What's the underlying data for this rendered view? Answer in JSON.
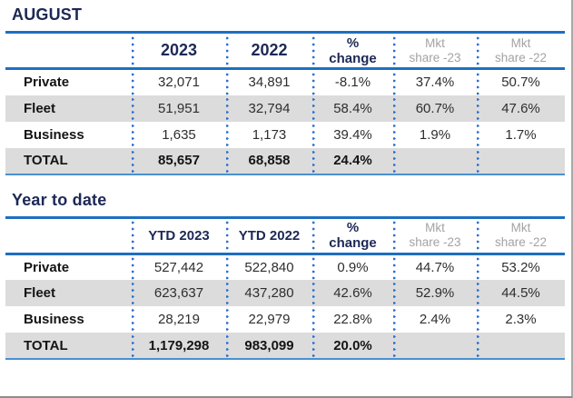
{
  "colors": {
    "accent_blue": "#1e6fc0",
    "light_blue_rule": "#4a90d0",
    "dot_blue": "#2a6fce",
    "navy": "#1c2856",
    "stripe_gray": "#dcdcdc",
    "header_gray": "#a3a3a3"
  },
  "sections": [
    {
      "title": "AUGUST",
      "table": {
        "columns": [
          {
            "line1": "",
            "line2": ""
          },
          {
            "line1": "2023",
            "line2": ""
          },
          {
            "line1": "2022",
            "line2": ""
          },
          {
            "line1": "%",
            "line2": "change"
          },
          {
            "line1": "Mkt",
            "line2": "share -23"
          },
          {
            "line1": "Mkt",
            "line2": "share -22"
          }
        ],
        "rows": [
          {
            "label": "Private",
            "values": [
              "32,071",
              "34,891",
              "-8.1%",
              "37.4%",
              "50.7%"
            ]
          },
          {
            "label": "Fleet",
            "values": [
              "51,951",
              "32,794",
              "58.4%",
              "60.7%",
              "47.6%"
            ]
          },
          {
            "label": "Business",
            "values": [
              "1,635",
              "1,173",
              "39.4%",
              "1.9%",
              "1.7%"
            ]
          },
          {
            "label": "TOTAL",
            "values": [
              "85,657",
              "68,858",
              "24.4%",
              "",
              ""
            ]
          }
        ]
      }
    },
    {
      "title": "Year to date",
      "table": {
        "columns": [
          {
            "line1": "",
            "line2": ""
          },
          {
            "line1": "YTD 2023",
            "line2": ""
          },
          {
            "line1": "YTD 2022",
            "line2": ""
          },
          {
            "line1": "%",
            "line2": "change"
          },
          {
            "line1": "Mkt",
            "line2": "share -23"
          },
          {
            "line1": "Mkt",
            "line2": "share -22"
          }
        ],
        "rows": [
          {
            "label": "Private",
            "values": [
              "527,442",
              "522,840",
              "0.9%",
              "44.7%",
              "53.2%"
            ]
          },
          {
            "label": "Fleet",
            "values": [
              "623,637",
              "437,280",
              "42.6%",
              "52.9%",
              "44.5%"
            ]
          },
          {
            "label": "Business",
            "values": [
              "28,219",
              "22,979",
              "22.8%",
              "2.4%",
              "2.3%"
            ]
          },
          {
            "label": "TOTAL",
            "values": [
              "1,179,298",
              "983,099",
              "20.0%",
              "",
              ""
            ]
          }
        ]
      }
    }
  ]
}
